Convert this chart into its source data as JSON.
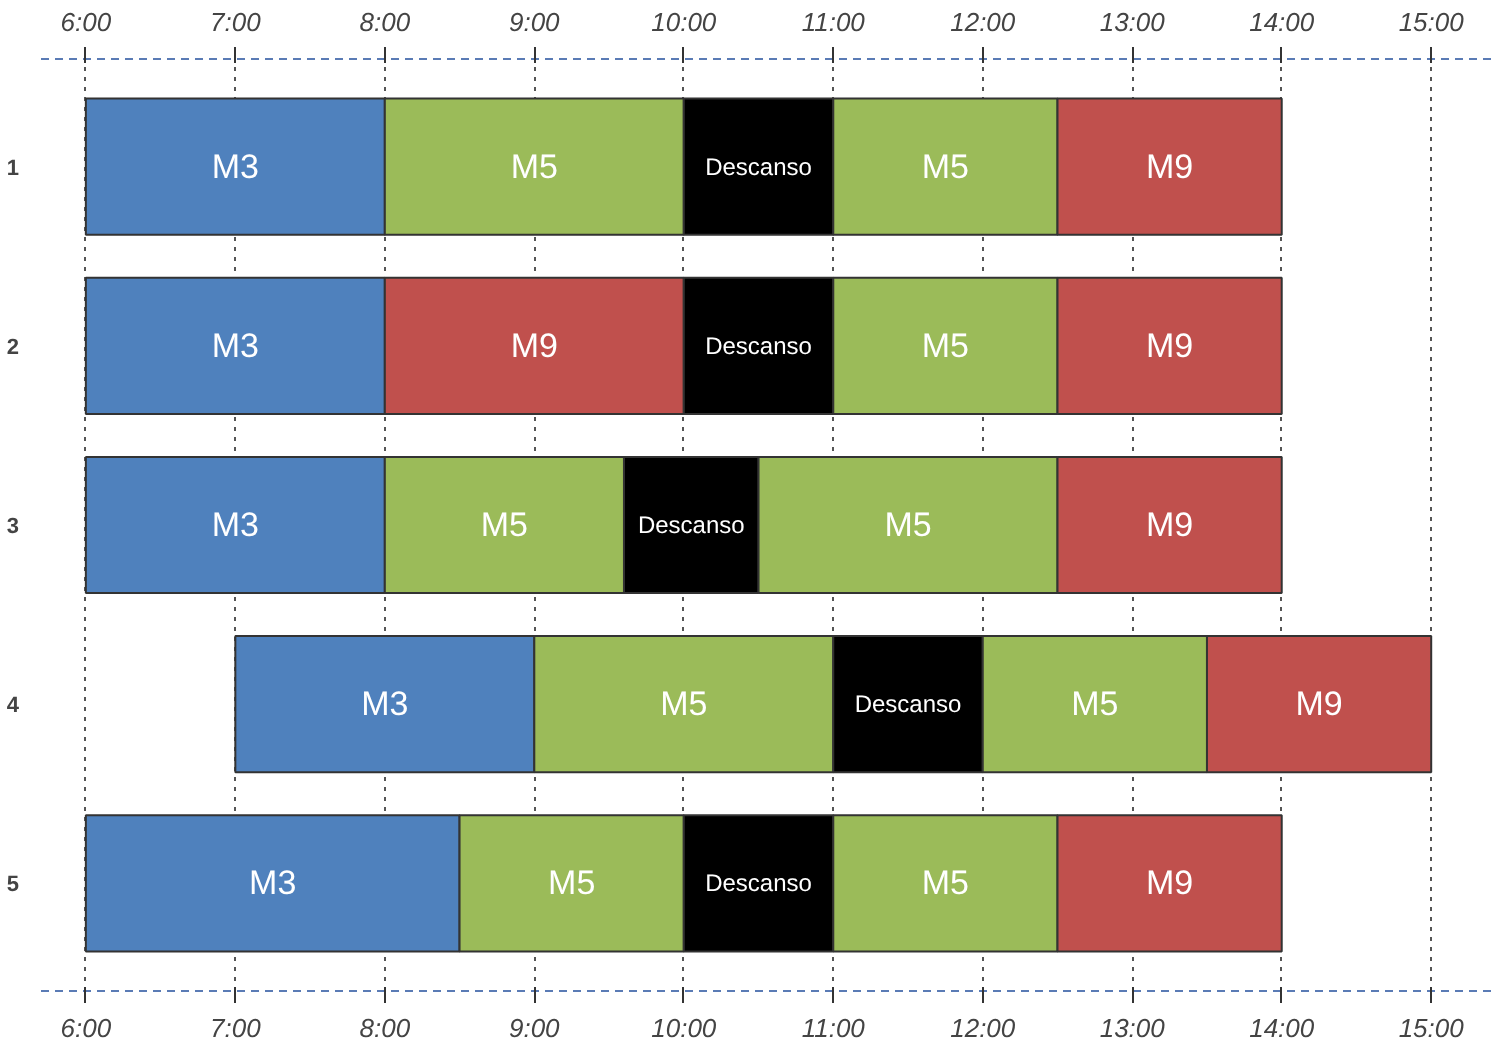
{
  "chart_data": {
    "type": "bar",
    "orientation": "horizontal",
    "categories": [
      "1",
      "2",
      "3",
      "4",
      "5"
    ],
    "xlim": [
      5.7,
      15.4
    ],
    "xticks": [
      {
        "value": 6,
        "label": "6:00"
      },
      {
        "value": 7,
        "label": "7:00"
      },
      {
        "value": 8,
        "label": "8:00"
      },
      {
        "value": 9,
        "label": "9:00"
      },
      {
        "value": 10,
        "label": "10:00"
      },
      {
        "value": 11,
        "label": "11:00"
      },
      {
        "value": 12,
        "label": "12:00"
      },
      {
        "value": 13,
        "label": "13:00"
      },
      {
        "value": 14,
        "label": "14:00"
      },
      {
        "value": 15,
        "label": "15:00"
      }
    ],
    "x2lim": [
      5.7,
      15.4
    ],
    "x2ticks": [
      {
        "value": 6,
        "label": "6:00"
      },
      {
        "value": 7,
        "label": "7:00"
      },
      {
        "value": 8,
        "label": "8:00"
      },
      {
        "value": 9,
        "label": "9:00"
      },
      {
        "value": 10,
        "label": "10:00"
      },
      {
        "value": 11,
        "label": "11:00"
      },
      {
        "value": 12,
        "label": "12:00"
      },
      {
        "value": 13,
        "label": "13:00"
      },
      {
        "value": 14,
        "label": "14:00"
      },
      {
        "value": 15,
        "label": "15:00"
      }
    ],
    "grid": "x",
    "line_style": "dotted",
    "series": [
      {
        "base": [
          6,
          6,
          6,
          7,
          6
        ],
        "values": [
          2,
          2,
          2,
          2,
          2.5
        ],
        "colors": [
          "#4f81bd",
          "#4f81bd",
          "#4f81bd",
          "#4f81bd",
          "#4f81bd"
        ],
        "value_labels": [
          "M3",
          "M3",
          "M3",
          "M3",
          "M3"
        ]
      },
      {
        "base": [
          8,
          8,
          8,
          9,
          8.5
        ],
        "values": [
          2,
          2,
          1.6,
          2,
          1.5
        ],
        "colors": [
          "#9bbb59",
          "#c0504d",
          "#9bbb59",
          "#9bbb59",
          "#9bbb59"
        ],
        "value_labels": [
          "M5",
          "M9",
          "M5",
          "M5",
          "M5"
        ]
      },
      {
        "base": [
          10,
          10,
          9.6,
          11,
          10
        ],
        "values": [
          1,
          1,
          0.9,
          1,
          1
        ],
        "colors": [
          "#000000",
          "#000000",
          "#000000",
          "#000000",
          "#000000"
        ],
        "value_labels": [
          "Descanso",
          "Descanso",
          "Descanso",
          "Descanso",
          "Descanso"
        ]
      },
      {
        "base": [
          11,
          11,
          10.5,
          12,
          11
        ],
        "values": [
          1.5,
          1.5,
          2,
          1.5,
          1.5
        ],
        "colors": [
          "#9bbb59",
          "#9bbb59",
          "#9bbb59",
          "#9bbb59",
          "#9bbb59"
        ],
        "value_labels": [
          "M5",
          "M5",
          "M5",
          "M5",
          "M5"
        ]
      },
      {
        "base": [
          12.5,
          12.5,
          12.5,
          13.5,
          12.5
        ],
        "values": [
          1.5,
          1.5,
          1.5,
          1.5,
          1.5
        ],
        "colors": [
          "#c0504d",
          "#c0504d",
          "#c0504d",
          "#c0504d",
          "#c0504d"
        ],
        "value_labels": [
          "M9",
          "M9",
          "M9",
          "M9",
          "M9"
        ]
      }
    ]
  }
}
